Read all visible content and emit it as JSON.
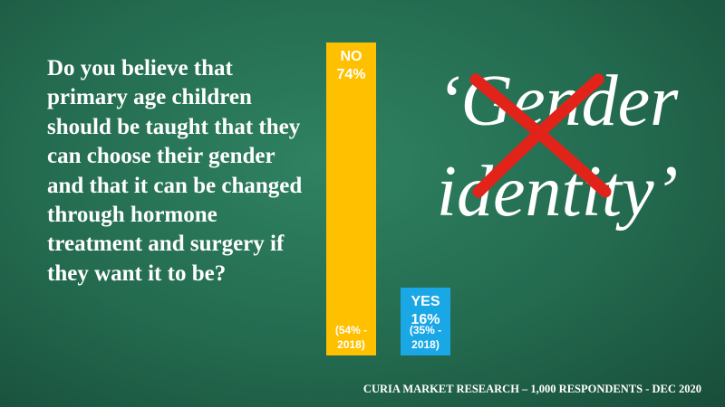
{
  "chart_data": {
    "type": "bar",
    "title": "‘Gender identity’",
    "question": "Do you believe that primary age children should be taught that they can choose their gender and that it can be changed through hormone treatment and surgery if they want it to be?",
    "categories": [
      "NO",
      "YES"
    ],
    "values": [
      74,
      16
    ],
    "value_labels": [
      "74%",
      "16%"
    ],
    "notes": [
      "(54% - 2018)",
      "(35% - 2018)"
    ],
    "colors": [
      "#ffc000",
      "#1aa7e6"
    ],
    "source": "CURIA MARKET RESEARCH – 1,000 RESPONDENTS - DEC 2020"
  }
}
